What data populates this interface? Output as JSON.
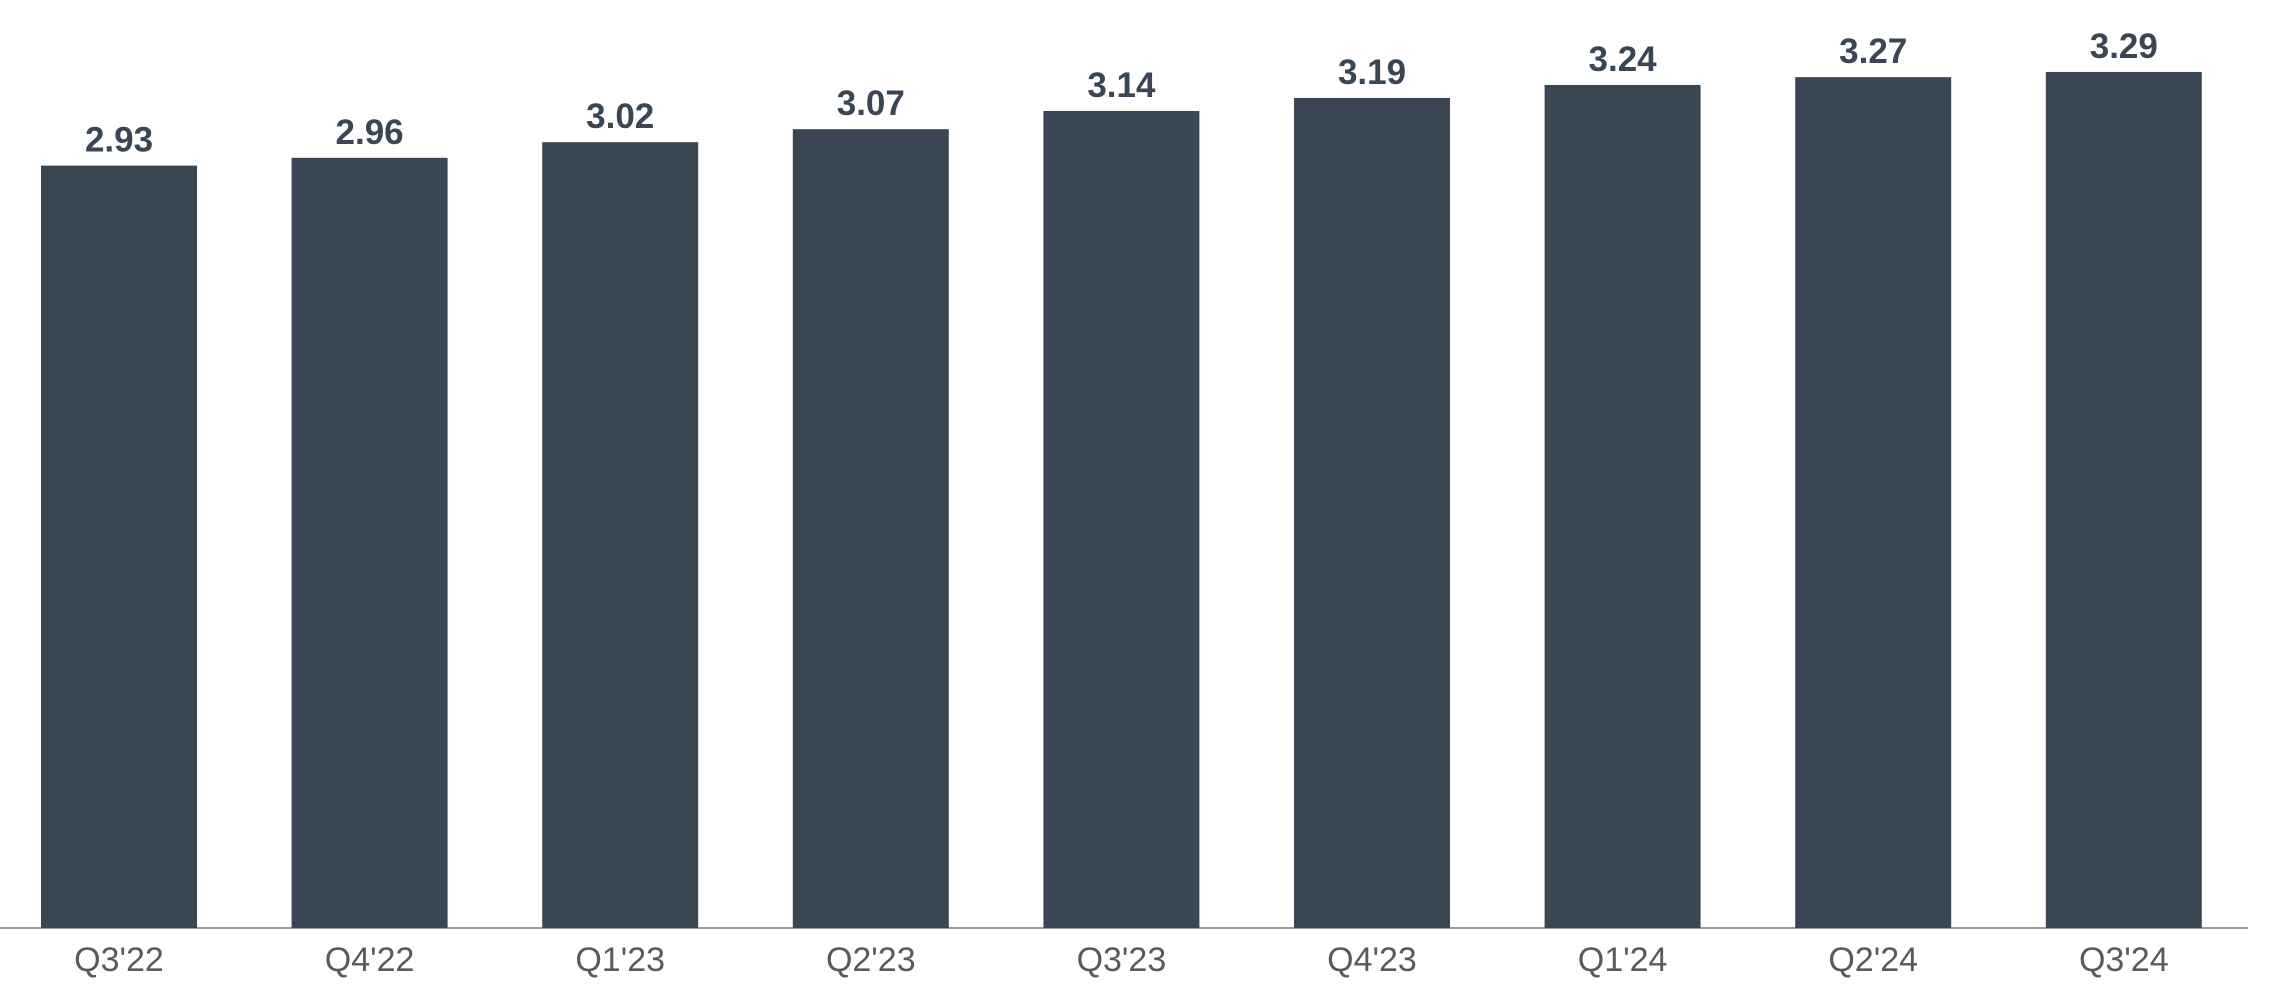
{
  "chart_data": {
    "type": "bar",
    "categories": [
      "Q3'22",
      "Q4'22",
      "Q1'23",
      "Q2'23",
      "Q3'23",
      "Q4'23",
      "Q1'24",
      "Q2'24",
      "Q3'24"
    ],
    "values": [
      2.93,
      2.96,
      3.02,
      3.07,
      3.14,
      3.19,
      3.24,
      3.27,
      3.29
    ],
    "color": "#3a4654"
  }
}
